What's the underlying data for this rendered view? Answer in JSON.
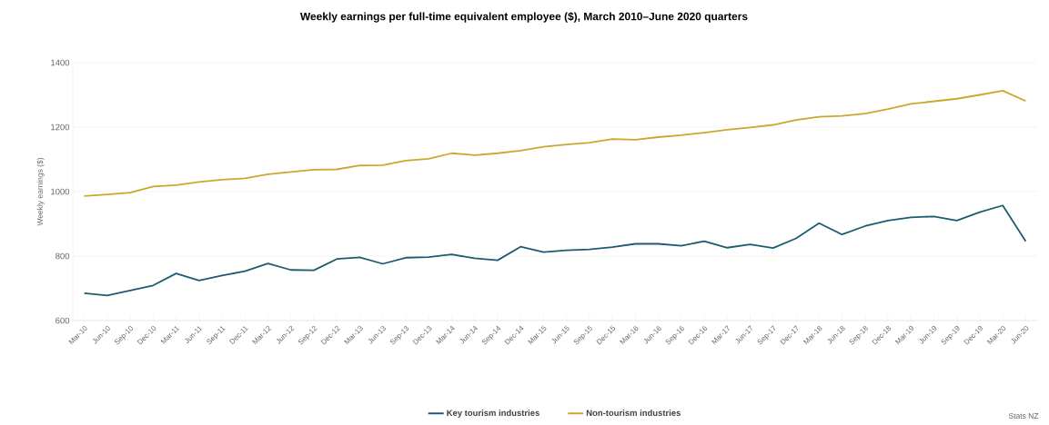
{
  "chart_data": {
    "type": "line",
    "title": "Weekly earnings per full-time equivalent employee ($), March 2010–June 2020 quarters",
    "ylabel": "Weekly earnings ($)",
    "categories": [
      "Mar-10",
      "Jun-10",
      "Sep-10",
      "Dec-10",
      "Mar-11",
      "Jun-11",
      "Sep-11",
      "Dec-11",
      "Mar-12",
      "Jun-12",
      "Sep-12",
      "Dec-12",
      "Mar-13",
      "Jun-13",
      "Sep-13",
      "Dec-13",
      "Mar-14",
      "Jun-14",
      "Sep-14",
      "Dec-14",
      "Mar-15",
      "Jun-15",
      "Sep-15",
      "Dec-15",
      "Mar-16",
      "Jun-16",
      "Sep-16",
      "Dec-16",
      "Mar-17",
      "Jun-17",
      "Sep-17",
      "Dec-17",
      "Mar-18",
      "Jun-18",
      "Sep-18",
      "Dec-18",
      "Mar-19",
      "Jun-19",
      "Sep-19",
      "Dec-19",
      "Mar-20",
      "Jun-20"
    ],
    "series": [
      {
        "name": "Key tourism industries",
        "color": "#1d5b74",
        "values": [
          685,
          678,
          693,
          709,
          746,
          724,
          740,
          753,
          777,
          757,
          756,
          791,
          796,
          776,
          795,
          797,
          805,
          793,
          787,
          829,
          812,
          818,
          821,
          828,
          838,
          838,
          832,
          846,
          826,
          836,
          825,
          855,
          902,
          867,
          893,
          910,
          920,
          923,
          910,
          936,
          957,
          846
        ]
      },
      {
        "name": "Non-tourism industries",
        "color": "#c9a82c",
        "values": [
          986,
          991,
          997,
          1016,
          1020,
          1030,
          1037,
          1041,
          1054,
          1061,
          1068,
          1069,
          1081,
          1082,
          1096,
          1102,
          1119,
          1113,
          1119,
          1127,
          1139,
          1146,
          1152,
          1163,
          1161,
          1169,
          1175,
          1183,
          1192,
          1199,
          1207,
          1222,
          1232,
          1235,
          1242,
          1256,
          1272,
          1280,
          1288,
          1300,
          1313,
          1281
        ]
      }
    ],
    "ylim": [
      600,
      1400
    ],
    "yticks": [
      600,
      800,
      1000,
      1200,
      1400
    ],
    "grid": "y",
    "legend": "bottom",
    "marker": "none",
    "line_style": "solid",
    "annotations": [
      "Stats NZ"
    ]
  }
}
